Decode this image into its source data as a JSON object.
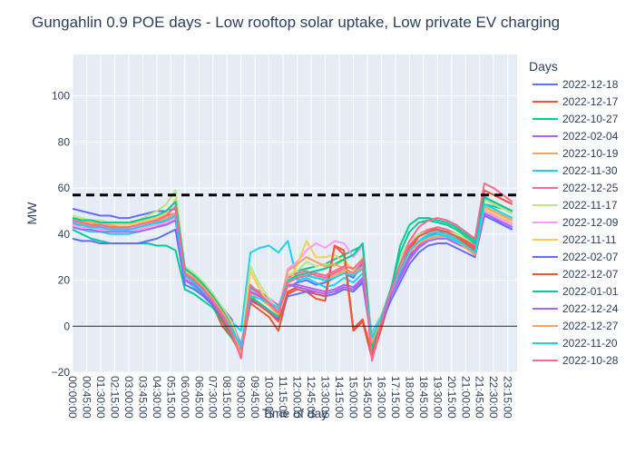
{
  "chart_data": {
    "type": "line",
    "title": "Gungahlin 0.9 POE days - Low rooftop solar uptake, Low private EV charging",
    "xlabel": "Time of day",
    "ylabel": "MW",
    "ylim": [
      -20,
      118
    ],
    "yticks": [
      -20,
      0,
      20,
      40,
      60,
      80,
      100
    ],
    "grid": true,
    "legend_title": "Days",
    "legend_position": "right",
    "x_tick_labels": [
      "00:00:00",
      "00:45:00",
      "01:30:00",
      "02:15:00",
      "03:00:00",
      "03:45:00",
      "04:30:00",
      "05:15:00",
      "06:00:00",
      "06:45:00",
      "07:30:00",
      "08:15:00",
      "09:00:00",
      "09:45:00",
      "10:30:00",
      "11:15:00",
      "12:00:00",
      "12:45:00",
      "13:30:00",
      "14:15:00",
      "15:00:00",
      "15:45:00",
      "16:30:00",
      "17:15:00",
      "18:00:00",
      "18:45:00",
      "19:30:00",
      "20:15:00",
      "21:00:00",
      "21:45:00",
      "22:30:00",
      "23:15:00"
    ],
    "reference_line": {
      "y": 57,
      "style": "dashed",
      "color": "#000000"
    },
    "zero_line": {
      "y": 0,
      "color": "#222222"
    },
    "x_hours": [
      0,
      0.5,
      1,
      1.5,
      2,
      2.5,
      3,
      3.5,
      4,
      4.5,
      5,
      5.5,
      6,
      6.5,
      7,
      7.5,
      8,
      8.5,
      9,
      9.5,
      10,
      10.5,
      11,
      11.5,
      12,
      12.5,
      13,
      13.5,
      14,
      14.5,
      15,
      15.5,
      16,
      16.5,
      17,
      17.5,
      18,
      18.5,
      19,
      19.5,
      20,
      20.5,
      21,
      21.5,
      22,
      22.5,
      23,
      23.5
    ],
    "series": [
      {
        "name": "2022-12-18",
        "color": "#636efa",
        "values": [
          51,
          50,
          49,
          48,
          48,
          47,
          47,
          48,
          49,
          50,
          50,
          51,
          25,
          22,
          19,
          14,
          8,
          3,
          -10,
          14,
          15,
          12,
          9,
          17,
          19,
          20,
          18,
          19,
          21,
          23,
          21,
          27,
          -6,
          3,
          14,
          22,
          31,
          37,
          39,
          41,
          41,
          40,
          38,
          35,
          49,
          47,
          44,
          42
        ]
      },
      {
        "name": "2022-12-17",
        "color": "#ef553b",
        "values": [
          44,
          44,
          43,
          43,
          42,
          42,
          42,
          42,
          43,
          44,
          46,
          48,
          21,
          18,
          14,
          9,
          0,
          -5,
          -12,
          10,
          7,
          4,
          -2,
          14,
          16,
          15,
          12,
          11,
          35,
          31,
          -2,
          2,
          -14,
          -1,
          13,
          22,
          33,
          39,
          41,
          43,
          42,
          40,
          37,
          34,
          59,
          57,
          55,
          53
        ]
      },
      {
        "name": "2022-10-27",
        "color": "#00cc96",
        "values": [
          42,
          40,
          38,
          37,
          36,
          36,
          36,
          36,
          36,
          35,
          35,
          33,
          16,
          14,
          11,
          8,
          2,
          -5,
          -9,
          13,
          10,
          7,
          4,
          22,
          24,
          25,
          26,
          27,
          29,
          31,
          33,
          35,
          -12,
          2,
          15,
          35,
          44,
          47,
          47,
          46,
          45,
          43,
          40,
          37,
          53,
          52,
          51,
          49
        ]
      },
      {
        "name": "2022-02-04",
        "color": "#ab63fa",
        "values": [
          46,
          45,
          44,
          44,
          43,
          43,
          43,
          44,
          45,
          46,
          47,
          49,
          24,
          22,
          18,
          13,
          7,
          2,
          -8,
          17,
          15,
          12,
          9,
          18,
          18,
          17,
          16,
          15,
          16,
          18,
          17,
          21,
          -5,
          4,
          14,
          22,
          30,
          35,
          38,
          39,
          39,
          37,
          35,
          32,
          50,
          48,
          46,
          44
        ]
      },
      {
        "name": "2022-10-19",
        "color": "#ffa15a",
        "values": [
          45,
          44,
          44,
          43,
          43,
          42,
          42,
          43,
          44,
          45,
          46,
          47,
          22,
          20,
          16,
          12,
          6,
          0,
          -9,
          16,
          14,
          11,
          7,
          19,
          21,
          22,
          21,
          20,
          22,
          24,
          22,
          26,
          -7,
          3,
          16,
          25,
          33,
          37,
          39,
          40,
          40,
          38,
          35,
          32,
          51,
          49,
          47,
          45
        ]
      },
      {
        "name": "2022-11-30",
        "color": "#19d3f3",
        "values": [
          43,
          42,
          41,
          41,
          40,
          40,
          40,
          41,
          42,
          43,
          45,
          47,
          20,
          17,
          13,
          9,
          5,
          2,
          -2,
          32,
          34,
          35,
          32,
          37,
          20,
          21,
          19,
          17,
          18,
          21,
          19,
          23,
          -3,
          5,
          15,
          24,
          33,
          37,
          40,
          41,
          40,
          38,
          36,
          33,
          52,
          50,
          48,
          46
        ]
      },
      {
        "name": "2022-12-25",
        "color": "#ff6692",
        "values": [
          47,
          46,
          46,
          45,
          45,
          45,
          45,
          45,
          46,
          47,
          48,
          49,
          23,
          21,
          17,
          12,
          6,
          1,
          -9,
          15,
          13,
          11,
          8,
          21,
          23,
          24,
          22,
          21,
          23,
          25,
          23,
          28,
          -6,
          4,
          16,
          27,
          35,
          40,
          42,
          43,
          42,
          40,
          38,
          35,
          55,
          53,
          51,
          49
        ]
      },
      {
        "name": "2022-11-17",
        "color": "#b6e880",
        "values": [
          48,
          47,
          46,
          46,
          45,
          45,
          45,
          46,
          48,
          50,
          53,
          59,
          26,
          23,
          19,
          14,
          8,
          2,
          -10,
          26,
          18,
          12,
          8,
          22,
          24,
          28,
          26,
          27,
          26,
          29,
          24,
          30,
          -5,
          5,
          15,
          30,
          37,
          40,
          41,
          42,
          41,
          40,
          38,
          36,
          55,
          53,
          51,
          49
        ]
      },
      {
        "name": "2022-12-09",
        "color": "#ff97ff",
        "values": [
          44,
          43,
          43,
          42,
          42,
          42,
          42,
          42,
          43,
          44,
          45,
          47,
          21,
          19,
          15,
          11,
          5,
          -1,
          -9,
          16,
          14,
          11,
          7,
          25,
          28,
          33,
          36,
          34,
          37,
          36,
          30,
          35,
          -6,
          3,
          14,
          24,
          32,
          36,
          38,
          39,
          39,
          37,
          35,
          32,
          50,
          48,
          46,
          44
        ]
      },
      {
        "name": "2022-11-11",
        "color": "#fecb52",
        "values": [
          46,
          45,
          45,
          44,
          44,
          44,
          44,
          45,
          46,
          47,
          49,
          55,
          24,
          21,
          17,
          12,
          6,
          -2,
          -13,
          24,
          16,
          10,
          6,
          17,
          27,
          37,
          30,
          30,
          31,
          28,
          25,
          29,
          -4,
          4,
          15,
          24,
          32,
          36,
          38,
          39,
          38,
          36,
          34,
          31,
          51,
          49,
          47,
          45
        ]
      },
      {
        "name": "2022-02-07",
        "color": "#636efa",
        "values": [
          38,
          37,
          37,
          36,
          36,
          36,
          36,
          36,
          37,
          38,
          40,
          42,
          18,
          16,
          13,
          9,
          3,
          -3,
          -9,
          11,
          9,
          6,
          3,
          13,
          14,
          15,
          14,
          13,
          14,
          16,
          15,
          19,
          -8,
          1,
          11,
          19,
          27,
          32,
          35,
          36,
          36,
          34,
          32,
          30,
          48,
          46,
          44,
          42
        ]
      },
      {
        "name": "2022-12-07",
        "color": "#ef553b",
        "values": [
          45,
          44,
          43,
          43,
          42,
          42,
          42,
          43,
          44,
          45,
          46,
          48,
          22,
          19,
          15,
          10,
          3,
          -4,
          -11,
          12,
          9,
          6,
          2,
          15,
          17,
          16,
          14,
          13,
          35,
          33,
          -1,
          3,
          -12,
          1,
          15,
          24,
          34,
          39,
          41,
          42,
          41,
          39,
          36,
          33,
          56,
          54,
          52,
          50
        ]
      },
      {
        "name": "2022-01-01",
        "color": "#00cc96",
        "values": [
          47,
          46,
          46,
          45,
          45,
          45,
          45,
          46,
          47,
          48,
          50,
          54,
          25,
          22,
          18,
          13,
          7,
          0,
          -11,
          17,
          14,
          10,
          6,
          20,
          22,
          23,
          24,
          25,
          27,
          29,
          31,
          36,
          -9,
          4,
          16,
          32,
          41,
          45,
          46,
          45,
          44,
          42,
          39,
          36,
          56,
          54,
          52,
          50
        ]
      },
      {
        "name": "2022-12-24",
        "color": "#ab63fa",
        "values": [
          43,
          42,
          42,
          41,
          41,
          41,
          41,
          41,
          42,
          43,
          44,
          46,
          20,
          18,
          14,
          10,
          4,
          -2,
          -10,
          15,
          13,
          10,
          6,
          18,
          17,
          16,
          15,
          14,
          15,
          17,
          16,
          20,
          -6,
          2,
          13,
          21,
          29,
          34,
          37,
          38,
          38,
          36,
          34,
          31,
          49,
          47,
          45,
          43
        ]
      },
      {
        "name": "2022-12-27",
        "color": "#ffa15a",
        "values": [
          46,
          45,
          45,
          44,
          44,
          43,
          43,
          44,
          45,
          46,
          47,
          49,
          23,
          21,
          17,
          12,
          6,
          0,
          -12,
          14,
          12,
          9,
          5,
          24,
          27,
          30,
          28,
          26,
          27,
          25,
          22,
          26,
          -7,
          3,
          15,
          24,
          32,
          36,
          38,
          39,
          39,
          37,
          34,
          31,
          52,
          50,
          48,
          46
        ]
      },
      {
        "name": "2022-11-20",
        "color": "#19d3f3",
        "values": [
          45,
          44,
          43,
          43,
          42,
          42,
          42,
          43,
          44,
          45,
          46,
          48,
          22,
          19,
          15,
          11,
          5,
          -1,
          -9,
          13,
          12,
          10,
          8,
          20,
          21,
          22,
          21,
          20,
          21,
          23,
          22,
          25,
          -5,
          4,
          15,
          24,
          33,
          37,
          39,
          40,
          39,
          37,
          35,
          32,
          53,
          51,
          49,
          47
        ]
      },
      {
        "name": "2022-10-28",
        "color": "#ff6692",
        "values": [
          46,
          45,
          44,
          44,
          43,
          43,
          43,
          44,
          45,
          46,
          48,
          52,
          23,
          20,
          16,
          11,
          5,
          -3,
          -14,
          18,
          14,
          10,
          6,
          19,
          21,
          22,
          23,
          22,
          24,
          26,
          25,
          29,
          -15,
          2,
          15,
          27,
          37,
          43,
          46,
          47,
          46,
          44,
          41,
          38,
          62,
          60,
          57,
          54
        ]
      }
    ]
  }
}
